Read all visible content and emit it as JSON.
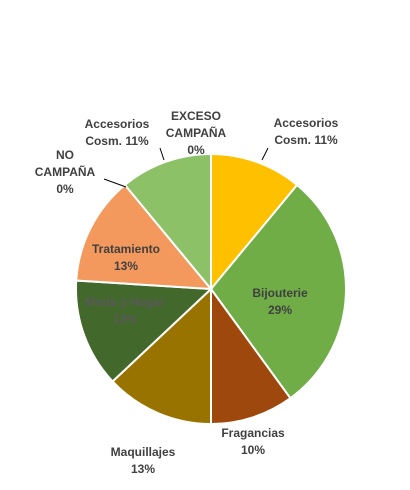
{
  "chart_data": {
    "type": "pie",
    "title": "",
    "slices": [
      {
        "name": "Accesorios Cosm.",
        "label_lines": [
          "Accesorios",
          "Cosm. 11%"
        ],
        "value": 11,
        "color": "#FFC000",
        "label_color": "#404040",
        "inside": false
      },
      {
        "name": "Bijouterie",
        "label_lines": [
          "Bijouterie",
          "29%"
        ],
        "value": 29,
        "color": "#70AD47",
        "label_color": "#404040",
        "inside": true
      },
      {
        "name": "Fragancias",
        "label_lines": [
          "Fragancias",
          "10%"
        ],
        "value": 10,
        "color": "#9E480E",
        "label_color": "#404040",
        "inside": false
      },
      {
        "name": "Maquillajes",
        "label_lines": [
          "Maquillajes",
          "13%"
        ],
        "value": 13,
        "color": "#997300",
        "label_color": "#404040",
        "inside": false
      },
      {
        "name": "Moda y Hogar",
        "label_lines": [
          "Moda y Hogar",
          "13%"
        ],
        "value": 13,
        "color": "#43682B",
        "label_color": "#595959",
        "inside": true
      },
      {
        "name": "Tratamiento",
        "label_lines": [
          "Tratamiento",
          "13%"
        ],
        "value": 13,
        "color": "#F4995D",
        "label_color": "#404040",
        "inside": true
      },
      {
        "name": "NO CAMPAÑA",
        "label_lines": [
          "NO",
          "CAMPAÑA",
          "0%"
        ],
        "value": 0,
        "color": "#A5A5A5",
        "label_color": "#404040",
        "inside": false
      },
      {
        "name": "Accesorios Cosm.",
        "label_lines": [
          "Accesorios",
          "Cosm. 11%"
        ],
        "value": 11,
        "color": "#8CC168",
        "label_color": "#404040",
        "inside": false
      },
      {
        "name": "EXCESO CAMPAÑA",
        "label_lines": [
          "EXCESO",
          "CAMPAÑA",
          "0%"
        ],
        "value": 0,
        "color": "#5B9BD5",
        "label_color": "#404040",
        "inside": false
      }
    ],
    "start_angle_deg": 0,
    "direction": "clockwise",
    "legend": "none"
  }
}
